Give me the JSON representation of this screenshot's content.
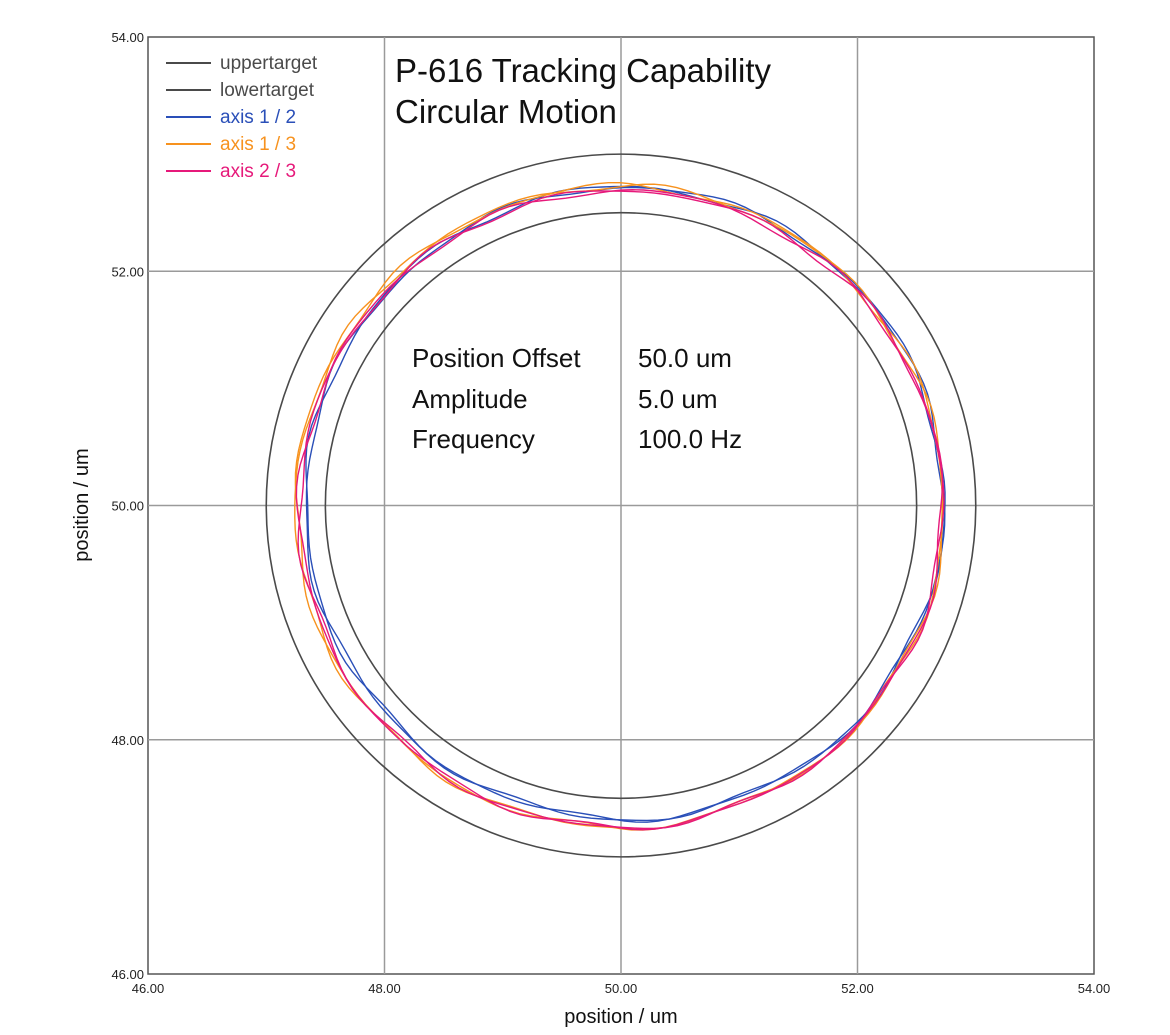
{
  "chart_data": {
    "type": "scatter",
    "title": [
      "P-616 Tracking Capability",
      "Circular Motion"
    ],
    "xlabel": "position / um",
    "ylabel": "position / um",
    "xlim": [
      46.0,
      54.0
    ],
    "ylim": [
      46.0,
      54.0
    ],
    "x_ticks": [
      "46.00",
      "48.00",
      "50.00",
      "52.00",
      "54.00"
    ],
    "y_ticks": [
      "46.00",
      "48.00",
      "50.00",
      "52.00",
      "54.00"
    ],
    "x_tick_values": [
      46,
      48,
      50,
      52,
      54
    ],
    "y_tick_values": [
      46,
      48,
      50,
      52,
      54
    ],
    "grid": true,
    "legend_position": "top-left",
    "series": [
      {
        "name": "uppertarget",
        "color": "#4a4a4a",
        "shape": "circle",
        "center": [
          50.0,
          50.0
        ],
        "radius": 3.0
      },
      {
        "name": "lowertarget",
        "color": "#4a4a4a",
        "shape": "circle",
        "center": [
          50.0,
          50.0
        ],
        "radius": 2.5
      },
      {
        "name": "axis 1 / 2",
        "color": "#2a4fb8",
        "shape": "circle",
        "center": [
          50.03,
          50.02
        ],
        "radius": 2.7
      },
      {
        "name": "axis 1 / 3",
        "color": "#f7921e",
        "shape": "circle",
        "center": [
          49.99,
          49.99
        ],
        "radius": 2.74
      },
      {
        "name": "axis 2 / 3",
        "color": "#e6197a",
        "shape": "circle",
        "center": [
          50.0,
          49.97
        ],
        "radius": 2.72
      }
    ],
    "annotations": [
      {
        "label": "Position Offset",
        "value": "50.0 um"
      },
      {
        "label": "Amplitude",
        "value": "5.0 um"
      },
      {
        "label": "Frequency",
        "value": "100.0 Hz"
      }
    ]
  }
}
